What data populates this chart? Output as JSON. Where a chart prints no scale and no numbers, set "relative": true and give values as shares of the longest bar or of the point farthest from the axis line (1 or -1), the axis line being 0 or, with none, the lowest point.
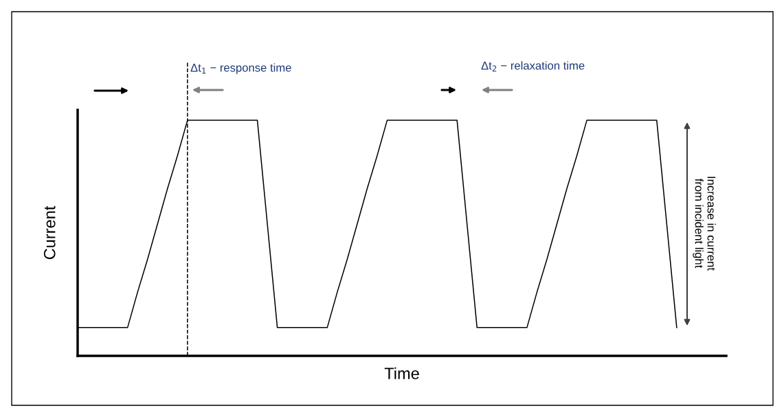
{
  "chart_data": {
    "type": "line",
    "relative": true,
    "xlabel": "Time",
    "ylabel": "Current",
    "tick_labels": false,
    "legend": false,
    "marker": "none",
    "categories": [
      null,
      null,
      null,
      null,
      null,
      null,
      null,
      null,
      null,
      null,
      null,
      null,
      null,
      null,
      null,
      null,
      null,
      null,
      null,
      null,
      null,
      null,
      null,
      null,
      null,
      null,
      null,
      null,
      null,
      null,
      null,
      null,
      null,
      null,
      null,
      null,
      null,
      null,
      null,
      null,
      null,
      null,
      null,
      null,
      null,
      null,
      null,
      null,
      null,
      null,
      null,
      null,
      null,
      null,
      null,
      null,
      null,
      null,
      null,
      null,
      null
    ],
    "series": [
      {
        "color": "#000000",
        "line_style": "solid",
        "values": [
          0.12,
          0.12,
          0.12,
          0.12,
          0.12,
          0.12,
          0.27,
          0.41,
          0.56,
          0.71,
          0.85,
          1,
          1,
          1,
          1,
          1,
          1,
          1,
          1,
          0.56,
          0.12,
          0.12,
          0.12,
          0.12,
          0.12,
          0.12,
          0.27,
          0.41,
          0.56,
          0.71,
          0.85,
          1,
          1,
          1,
          1,
          1,
          1,
          1,
          1,
          0.56,
          0.12,
          0.12,
          0.12,
          0.12,
          0.12,
          0.12,
          0.27,
          0.41,
          0.56,
          0.71,
          0.85,
          1,
          1,
          1,
          1,
          1,
          1,
          1,
          1,
          0.56,
          0.12
        ]
      }
    ],
    "annotations": [
      "Δt$_{1}$ − response time",
      "Δt$_{2}$ − relaxation time",
      "Increase in current\nfrom incident light"
    ]
  }
}
